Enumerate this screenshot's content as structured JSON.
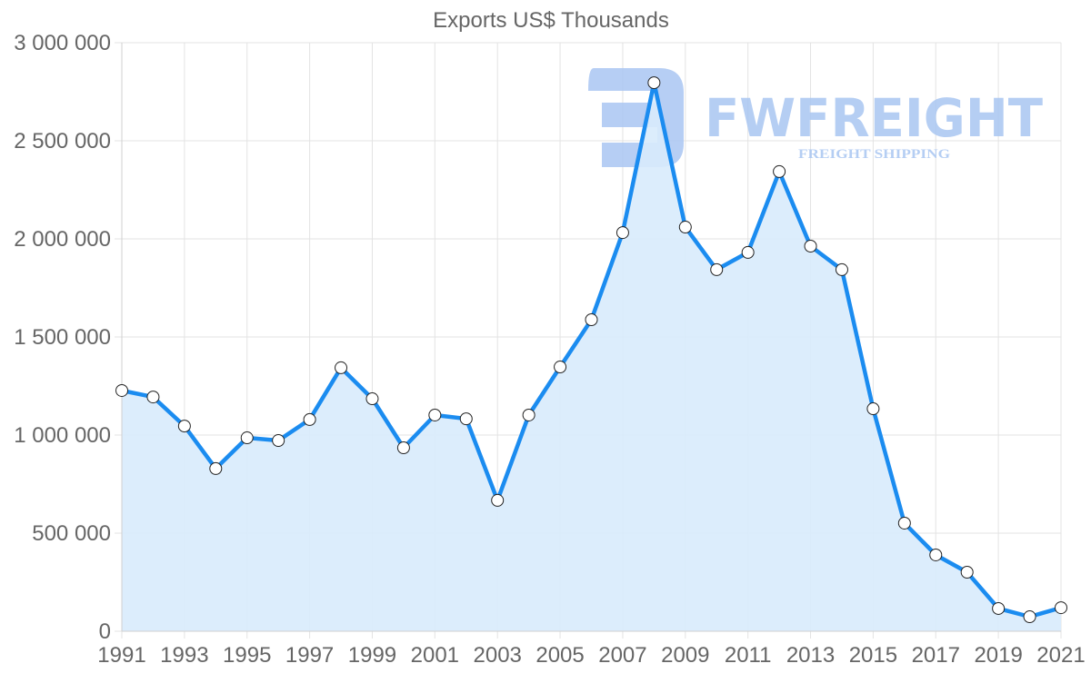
{
  "chart_data": {
    "type": "line",
    "title": "Exports US$ Thousands",
    "xlabel": "",
    "ylabel": "",
    "x": [
      1991,
      1992,
      1993,
      1994,
      1995,
      1996,
      1997,
      1998,
      1999,
      2000,
      2001,
      2002,
      2003,
      2004,
      2005,
      2006,
      2007,
      2008,
      2009,
      2010,
      2011,
      2012,
      2013,
      2014,
      2015,
      2016,
      2017,
      2018,
      2019,
      2020,
      2021
    ],
    "series": [
      {
        "name": "Exports US$ Thousands",
        "values": [
          1227000,
          1194000,
          1046000,
          829000,
          986000,
          972000,
          1079000,
          1343000,
          1185000,
          935000,
          1102000,
          1083000,
          667000,
          1102000,
          1347000,
          1588000,
          2032000,
          2796000,
          2060000,
          1843000,
          1931000,
          2343000,
          1963000,
          1843000,
          1134000,
          551000,
          389000,
          301000,
          116000,
          74000,
          120000
        ],
        "line_color": "#1b8cf0",
        "fill_color": "#d8ebfc",
        "point_fill": "#ffffff",
        "point_stroke": "#222222"
      }
    ],
    "ylim": [
      0,
      3000000
    ],
    "xlim": [
      1991,
      2021
    ],
    "yticks": [
      0,
      500000,
      1000000,
      1500000,
      2000000,
      2500000,
      3000000
    ],
    "ytick_labels": [
      "0",
      "500 000",
      "1 000 000",
      "1 500 000",
      "2 000 000",
      "2 500 000",
      "3 000 000"
    ],
    "xtick_labels": [
      "1991",
      "1993",
      "1995",
      "1997",
      "1999",
      "2001",
      "2003",
      "2005",
      "2007",
      "2009",
      "2011",
      "2013",
      "2015",
      "2017",
      "2019",
      "2021"
    ],
    "grid": true,
    "legend": "none",
    "area_filled": true
  },
  "watermark": {
    "brand": "FWFREIGHT",
    "tagline": "FREIGHT SHIPPING",
    "color": "#a9c6f2"
  }
}
